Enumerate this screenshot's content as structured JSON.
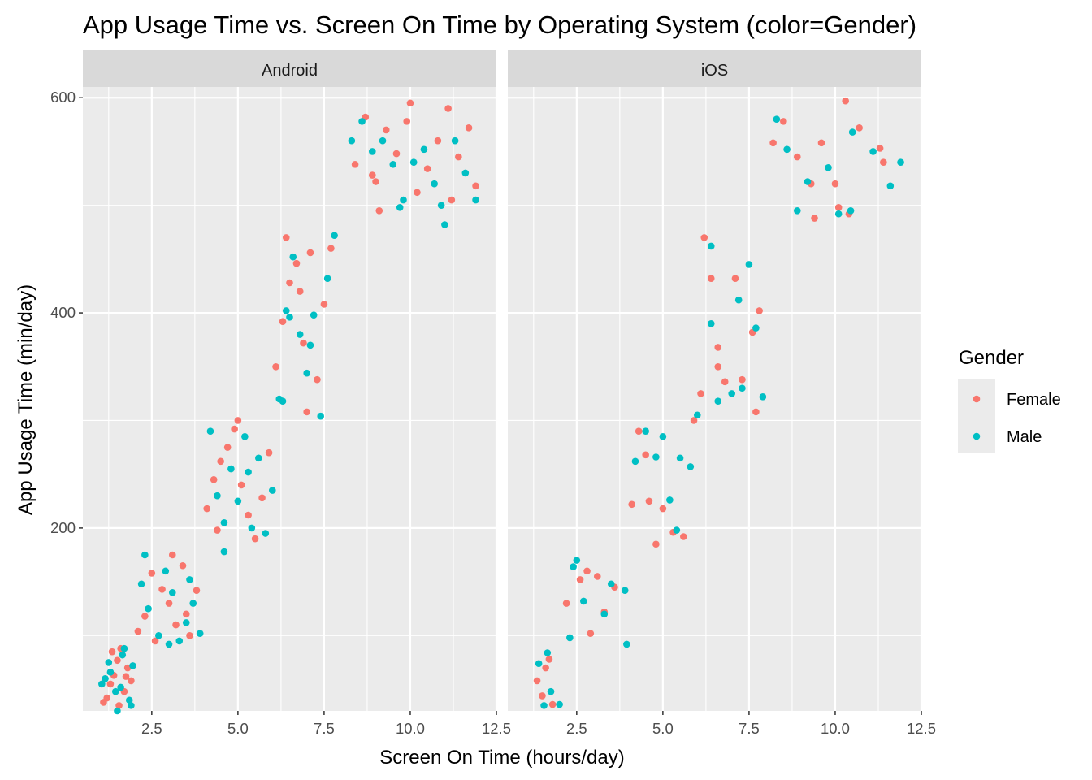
{
  "chart_data": {
    "type": "scatter",
    "title": "App Usage Time vs. Screen On Time by Operating System (color=Gender)",
    "xlabel": "Screen On Time (hours/day)",
    "ylabel": "App Usage Time (min/day)",
    "xlim": [
      0.5,
      12.5
    ],
    "ylim": [
      30,
      610
    ],
    "x_ticks": [
      2.5,
      5.0,
      7.5,
      10.0,
      12.5
    ],
    "x_tick_labels": [
      "2.5",
      "5.0",
      "7.5",
      "10.0",
      "12.5"
    ],
    "y_ticks": [
      200,
      400,
      600
    ],
    "y_tick_labels": [
      "200",
      "400",
      "600"
    ],
    "grid": true,
    "legend": {
      "title": "Gender",
      "position": "right",
      "entries": [
        {
          "label": "Female",
          "color": "#F8766D"
        },
        {
          "label": "Male",
          "color": "#00BFC4"
        }
      ]
    },
    "panels": [
      {
        "label": "Android",
        "series": [
          {
            "name": "Female",
            "color": "#F8766D",
            "points": [
              [
                1.2,
                42
              ],
              [
                1.3,
                55
              ],
              [
                1.4,
                63
              ],
              [
                1.5,
                77
              ],
              [
                1.6,
                88
              ],
              [
                1.7,
                48
              ],
              [
                1.8,
                70
              ],
              [
                1.9,
                58
              ],
              [
                1.1,
                38
              ],
              [
                1.35,
                85
              ],
              [
                1.55,
                35
              ],
              [
                1.75,
                62
              ],
              [
                2.1,
                104
              ],
              [
                2.3,
                118
              ],
              [
                2.5,
                158
              ],
              [
                2.8,
                143
              ],
              [
                3.0,
                130
              ],
              [
                3.2,
                110
              ],
              [
                3.4,
                165
              ],
              [
                3.6,
                100
              ],
              [
                3.8,
                142
              ],
              [
                2.6,
                95
              ],
              [
                3.1,
                175
              ],
              [
                3.5,
                120
              ],
              [
                4.1,
                218
              ],
              [
                4.3,
                245
              ],
              [
                4.5,
                262
              ],
              [
                4.7,
                275
              ],
              [
                4.9,
                292
              ],
              [
                5.1,
                240
              ],
              [
                5.3,
                212
              ],
              [
                5.5,
                190
              ],
              [
                5.7,
                228
              ],
              [
                5.9,
                270
              ],
              [
                4.4,
                198
              ],
              [
                5.0,
                300
              ],
              [
                6.1,
                350
              ],
              [
                6.3,
                392
              ],
              [
                6.5,
                428
              ],
              [
                6.7,
                446
              ],
              [
                6.9,
                372
              ],
              [
                7.1,
                456
              ],
              [
                7.3,
                338
              ],
              [
                7.5,
                408
              ],
              [
                7.7,
                460
              ],
              [
                6.4,
                470
              ],
              [
                7.0,
                308
              ],
              [
                6.8,
                420
              ],
              [
                8.4,
                538
              ],
              [
                8.7,
                582
              ],
              [
                9.0,
                522
              ],
              [
                9.3,
                570
              ],
              [
                9.6,
                548
              ],
              [
                9.9,
                578
              ],
              [
                10.2,
                512
              ],
              [
                10.5,
                534
              ],
              [
                10.8,
                560
              ],
              [
                11.1,
                590
              ],
              [
                11.4,
                545
              ],
              [
                11.7,
                572
              ],
              [
                11.9,
                518
              ],
              [
                9.1,
                495
              ],
              [
                10.0,
                595
              ],
              [
                11.2,
                505
              ],
              [
                8.9,
                528
              ]
            ]
          },
          {
            "name": "Male",
            "color": "#00BFC4",
            "points": [
              [
                1.15,
                60
              ],
              [
                1.25,
                75
              ],
              [
                1.45,
                48
              ],
              [
                1.65,
                82
              ],
              [
                1.85,
                40
              ],
              [
                1.95,
                72
              ],
              [
                1.05,
                55
              ],
              [
                1.5,
                30
              ],
              [
                1.7,
                88
              ],
              [
                1.3,
                66
              ],
              [
                1.6,
                52
              ],
              [
                1.9,
                35
              ],
              [
                2.2,
                148
              ],
              [
                2.4,
                125
              ],
              [
                2.7,
                100
              ],
              [
                2.9,
                160
              ],
              [
                3.1,
                140
              ],
              [
                3.3,
                95
              ],
              [
                3.5,
                112
              ],
              [
                3.7,
                130
              ],
              [
                3.9,
                102
              ],
              [
                2.3,
                175
              ],
              [
                3.0,
                92
              ],
              [
                3.6,
                152
              ],
              [
                4.2,
                290
              ],
              [
                4.4,
                230
              ],
              [
                4.6,
                205
              ],
              [
                4.8,
                255
              ],
              [
                5.0,
                225
              ],
              [
                5.2,
                285
              ],
              [
                5.4,
                200
              ],
              [
                5.6,
                265
              ],
              [
                5.8,
                195
              ],
              [
                6.0,
                235
              ],
              [
                4.6,
                178
              ],
              [
                5.3,
                252
              ],
              [
                6.2,
                320
              ],
              [
                6.4,
                402
              ],
              [
                6.6,
                452
              ],
              [
                6.8,
                380
              ],
              [
                7.0,
                344
              ],
              [
                7.2,
                398
              ],
              [
                7.4,
                304
              ],
              [
                7.6,
                432
              ],
              [
                7.8,
                472
              ],
              [
                6.5,
                396
              ],
              [
                7.1,
                370
              ],
              [
                6.3,
                318
              ],
              [
                8.3,
                560
              ],
              [
                8.6,
                578
              ],
              [
                8.9,
                550
              ],
              [
                9.2,
                560
              ],
              [
                9.5,
                538
              ],
              [
                9.8,
                505
              ],
              [
                10.1,
                540
              ],
              [
                10.4,
                552
              ],
              [
                10.7,
                520
              ],
              [
                11.0,
                482
              ],
              [
                11.3,
                560
              ],
              [
                11.6,
                530
              ],
              [
                11.9,
                505
              ],
              [
                9.7,
                498
              ],
              [
                10.9,
                500
              ]
            ]
          }
        ]
      },
      {
        "label": "iOS",
        "series": [
          {
            "name": "Female",
            "color": "#F8766D",
            "points": [
              [
                1.35,
                58
              ],
              [
                1.6,
                70
              ],
              [
                1.8,
                36
              ],
              [
                1.5,
                44
              ],
              [
                1.7,
                78
              ],
              [
                2.2,
                130
              ],
              [
                2.6,
                152
              ],
              [
                2.9,
                102
              ],
              [
                3.1,
                155
              ],
              [
                3.6,
                145
              ],
              [
                3.3,
                122
              ],
              [
                2.8,
                160
              ],
              [
                4.1,
                222
              ],
              [
                4.3,
                290
              ],
              [
                4.5,
                268
              ],
              [
                4.8,
                185
              ],
              [
                5.0,
                218
              ],
              [
                5.3,
                196
              ],
              [
                5.6,
                192
              ],
              [
                4.6,
                225
              ],
              [
                5.9,
                300
              ],
              [
                6.1,
                325
              ],
              [
                6.2,
                470
              ],
              [
                6.4,
                432
              ],
              [
                6.6,
                368
              ],
              [
                6.8,
                336
              ],
              [
                7.1,
                432
              ],
              [
                7.3,
                338
              ],
              [
                7.6,
                382
              ],
              [
                7.8,
                402
              ],
              [
                7.7,
                308
              ],
              [
                6.6,
                350
              ],
              [
                8.2,
                558
              ],
              [
                8.5,
                578
              ],
              [
                8.9,
                545
              ],
              [
                9.3,
                520
              ],
              [
                9.6,
                558
              ],
              [
                10.0,
                520
              ],
              [
                10.3,
                597
              ],
              [
                10.7,
                572
              ],
              [
                11.3,
                553
              ],
              [
                11.4,
                540
              ],
              [
                9.4,
                488
              ],
              [
                10.1,
                498
              ],
              [
                10.4,
                492
              ]
            ]
          },
          {
            "name": "Male",
            "color": "#00BFC4",
            "points": [
              [
                1.4,
                74
              ],
              [
                1.55,
                35
              ],
              [
                1.75,
                48
              ],
              [
                2.0,
                36
              ],
              [
                1.65,
                84
              ],
              [
                2.3,
                98
              ],
              [
                2.5,
                170
              ],
              [
                2.7,
                132
              ],
              [
                3.3,
                120
              ],
              [
                3.5,
                148
              ],
              [
                3.9,
                142
              ],
              [
                3.95,
                92
              ],
              [
                2.4,
                164
              ],
              [
                4.2,
                262
              ],
              [
                4.5,
                290
              ],
              [
                4.8,
                266
              ],
              [
                5.0,
                285
              ],
              [
                5.2,
                226
              ],
              [
                5.5,
                265
              ],
              [
                5.8,
                257
              ],
              [
                5.4,
                198
              ],
              [
                6.0,
                305
              ],
              [
                6.4,
                390
              ],
              [
                6.6,
                318
              ],
              [
                7.0,
                325
              ],
              [
                7.2,
                412
              ],
              [
                7.5,
                445
              ],
              [
                7.7,
                386
              ],
              [
                7.9,
                322
              ],
              [
                6.4,
                462
              ],
              [
                7.3,
                330
              ],
              [
                8.3,
                580
              ],
              [
                8.6,
                552
              ],
              [
                8.9,
                495
              ],
              [
                9.2,
                522
              ],
              [
                9.8,
                535
              ],
              [
                10.1,
                492
              ],
              [
                10.5,
                568
              ],
              [
                11.1,
                550
              ],
              [
                11.6,
                518
              ],
              [
                11.9,
                540
              ],
              [
                10.45,
                495
              ]
            ]
          }
        ]
      }
    ]
  }
}
